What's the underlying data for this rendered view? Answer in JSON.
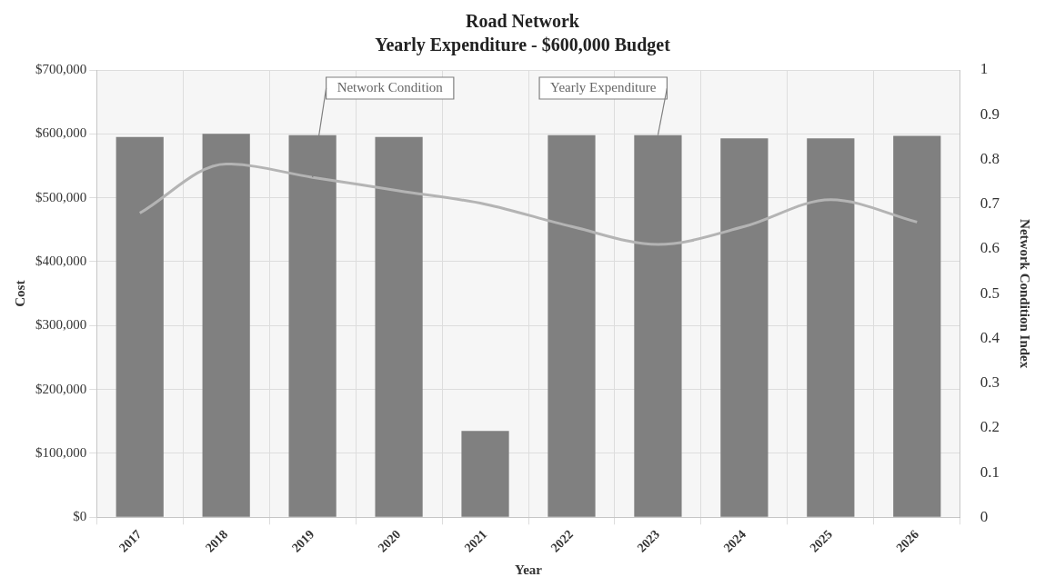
{
  "chart_data": {
    "type": "bar",
    "title": "Road Network",
    "subtitle": "Yearly Expenditure - $600,000 Budget",
    "xlabel": "Year",
    "ylabel": "Cost",
    "y2label": "Network Condition Index",
    "categories": [
      "2017",
      "2018",
      "2019",
      "2020",
      "2021",
      "2022",
      "2023",
      "2024",
      "2025",
      "2026"
    ],
    "series": [
      {
        "name": "Yearly Expenditure",
        "color": "#808080",
        "values": [
          595000,
          600000,
          598000,
          595000,
          135000,
          598000,
          598000,
          593000,
          593000,
          597000
        ]
      },
      {
        "name": "Network Condition",
        "type": "line",
        "axis": "y2",
        "color": "#b4b4b4",
        "values": [
          0.68,
          0.79,
          0.76,
          0.73,
          0.7,
          0.65,
          0.61,
          0.65,
          0.71,
          0.66
        ]
      }
    ],
    "ylim": [
      0,
      700000
    ],
    "yticks": [
      {
        "value": 0,
        "label": "$0"
      },
      {
        "value": 100000,
        "label": "$100,000"
      },
      {
        "value": 200000,
        "label": "$200,000"
      },
      {
        "value": 300000,
        "label": "$300,000"
      },
      {
        "value": 400000,
        "label": "$400,000"
      },
      {
        "value": 500000,
        "label": "$500,000"
      },
      {
        "value": 600000,
        "label": "$600,000"
      },
      {
        "value": 700000,
        "label": "$700,000"
      }
    ],
    "y2lim": [
      0,
      1
    ],
    "y2ticks": [
      0,
      0.1,
      0.2,
      0.3,
      0.4,
      0.5,
      0.6,
      0.7,
      0.8,
      0.9,
      1
    ],
    "grid": true,
    "marker": "none"
  }
}
